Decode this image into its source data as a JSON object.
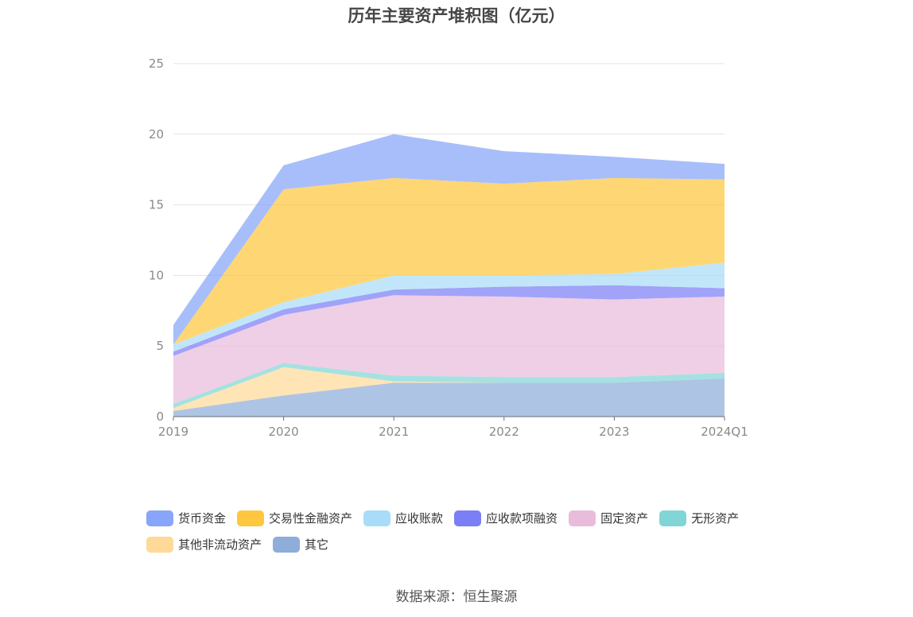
{
  "chart_data": {
    "type": "area",
    "stacked": true,
    "title": "历年主要资产堆积图（亿元）",
    "categories": [
      "2019",
      "2020",
      "2021",
      "2022",
      "2023",
      "2024Q1"
    ],
    "ylim": [
      0,
      25
    ],
    "yticks": [
      0,
      5,
      10,
      15,
      20,
      25
    ],
    "grid": true,
    "legend_position": "bottom",
    "series": [
      {
        "name": "其它",
        "color": "#8fadd9",
        "values": [
          0.4,
          1.5,
          2.4,
          2.4,
          2.4,
          2.7
        ]
      },
      {
        "name": "其他非流动资产",
        "color": "#ffd998",
        "values": [
          0.2,
          2.0,
          0.1,
          0.0,
          0.0,
          0.0
        ]
      },
      {
        "name": "无形资产",
        "color": "#82d5d6",
        "values": [
          0.3,
          0.3,
          0.4,
          0.4,
          0.4,
          0.4
        ]
      },
      {
        "name": "固定资产",
        "color": "#e9bcdc",
        "values": [
          3.4,
          3.4,
          5.7,
          5.7,
          5.5,
          5.4
        ]
      },
      {
        "name": "应收款项融资",
        "color": "#7b7ff5",
        "values": [
          0.3,
          0.4,
          0.4,
          0.7,
          1.0,
          0.6
        ]
      },
      {
        "name": "应收账款",
        "color": "#a9dcf8",
        "values": [
          0.5,
          0.5,
          1.0,
          0.8,
          0.8,
          1.8
        ]
      },
      {
        "name": "交易性金融资产",
        "color": "#fec73f",
        "values": [
          0.0,
          8.0,
          6.9,
          6.5,
          6.8,
          5.9
        ]
      },
      {
        "name": "货币资金",
        "color": "#87a5fa",
        "values": [
          1.4,
          1.7,
          3.1,
          2.3,
          1.5,
          1.1
        ]
      }
    ]
  },
  "legend_order": [
    7,
    6,
    5,
    4,
    3,
    2,
    1,
    0
  ],
  "source": "数据来源：恒生聚源"
}
